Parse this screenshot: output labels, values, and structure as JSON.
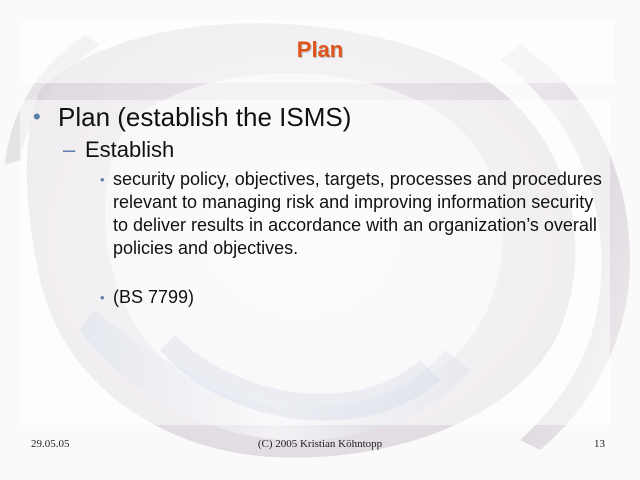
{
  "slide": {
    "title": "Plan",
    "level1": "Plan (establish the ISMS)",
    "level2": "Establish",
    "level3": [
      "security policy, objectives, targets, processes and procedures relevant to managing risk and improving information security to deliver results in accordance with an organization’s overall policies and objectives.",
      "(BS 7799)"
    ]
  },
  "footer": {
    "date": "29.05.05",
    "copyright": "(C) 2005 Kristian Köhntopp",
    "page_number": "13"
  },
  "colors": {
    "title": "#e0541c",
    "bullet": "#5a7fa8",
    "text": "#111111"
  },
  "icons": {
    "background": "abstract-metal-ring-art"
  }
}
